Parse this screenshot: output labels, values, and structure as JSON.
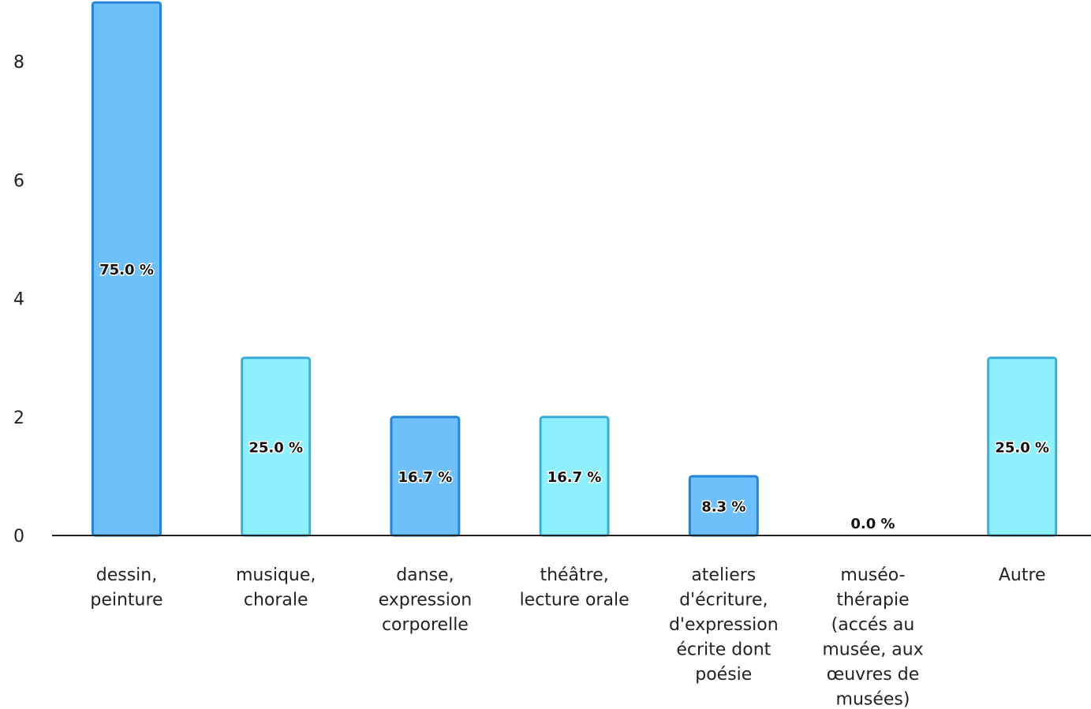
{
  "chart_data": {
    "type": "bar",
    "categories": [
      [
        "dessin,",
        "peinture"
      ],
      [
        "musique,",
        "chorale"
      ],
      [
        "danse,",
        "expression",
        "corporelle"
      ],
      [
        "théâtre,",
        "lecture orale"
      ],
      [
        "ateliers",
        "d'écriture,",
        "d'expression",
        "écrite dont",
        "poésie"
      ],
      [
        "muséo-",
        "thérapie",
        "(accés au",
        "musée, aux",
        "œuvres de",
        "musées)"
      ],
      [
        "Autre"
      ]
    ],
    "values": [
      9,
      3,
      2,
      2,
      1,
      0,
      3
    ],
    "data_labels": [
      "75.0 %",
      "25.0 %",
      "16.7 %",
      "16.7 %",
      "8.3 %",
      "0.0 %",
      "25.0 %"
    ],
    "yticks": [
      "0",
      "2",
      "4",
      "6",
      "8"
    ],
    "ylim": [
      0,
      9
    ],
    "title": "",
    "xlabel": "",
    "ylabel": "",
    "grid": false,
    "colors": {
      "bar_dark_fill": "#6ec0fb",
      "bar_dark_stroke": "#2584d8",
      "bar_light_fill": "#8ff0fd",
      "bar_light_stroke": "#3aaed8",
      "axis": "#222222"
    },
    "bar_color_pattern": [
      "dark",
      "light",
      "dark",
      "light",
      "dark",
      "light",
      "light"
    ]
  }
}
